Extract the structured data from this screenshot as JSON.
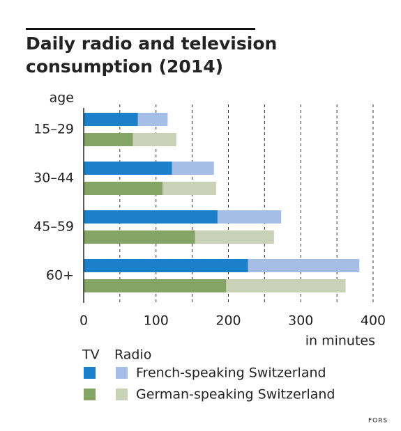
{
  "chart_data": {
    "type": "stacked-hbar",
    "title_lines": [
      "Daily radio and television",
      "consumption (2014)"
    ],
    "y_axis_label": "age",
    "x_axis_label": "in minutes",
    "categories": [
      "15–29",
      "30–44",
      "45–59",
      "60+"
    ],
    "legend_columns": [
      "TV",
      "Radio"
    ],
    "series": [
      {
        "name": "French-speaking Switzerland",
        "stack": [
          {
            "color": "#1b7fc9",
            "values": [
              75,
              122,
              185,
              227
            ]
          },
          {
            "color": "#a4bee7",
            "values": [
              41,
              58,
              88,
              154
            ]
          }
        ]
      },
      {
        "name": "German-speaking Switzerland",
        "stack": [
          {
            "color": "#84a466",
            "values": [
              68,
              109,
              154,
              197
            ]
          },
          {
            "color": "#c9d2b6",
            "values": [
              60,
              74,
              109,
              165
            ]
          }
        ]
      }
    ],
    "xlim": [
      0,
      400
    ],
    "xticks": [
      0,
      100,
      200,
      300,
      400
    ],
    "minor_xticks": [
      50,
      150,
      250,
      350
    ],
    "grid": true,
    "source": "FORS"
  }
}
